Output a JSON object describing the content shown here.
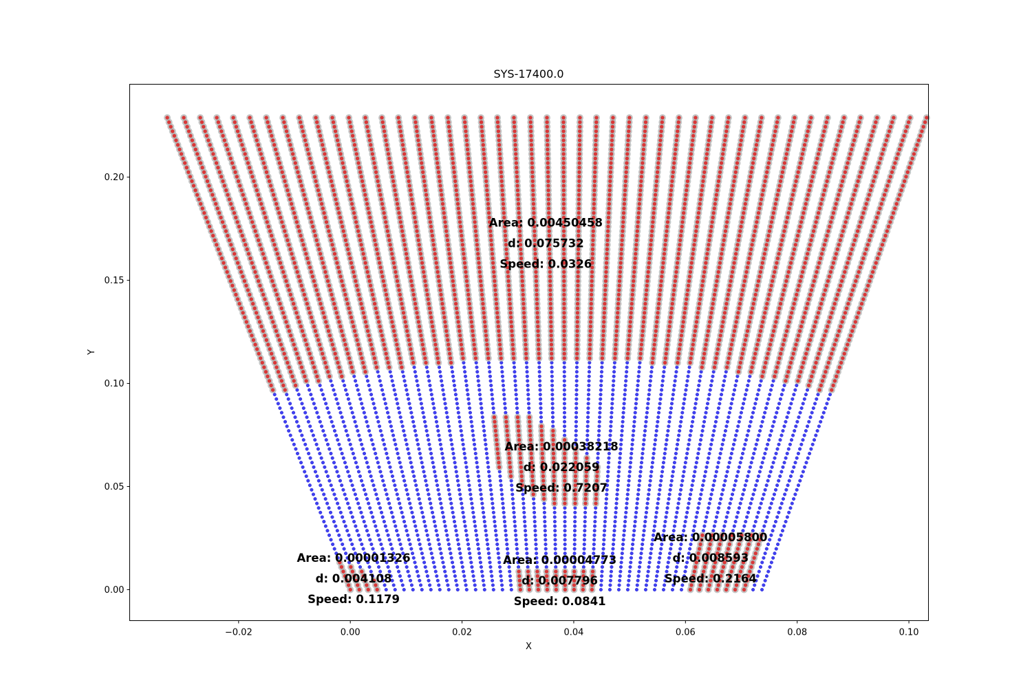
{
  "chart_data": {
    "type": "scatter",
    "title": "SYS-17400.0",
    "xlabel": "X",
    "ylabel": "Y",
    "xlim": [
      -0.0395,
      0.1035
    ],
    "ylim": [
      -0.015,
      0.245
    ],
    "x_ticks": [
      -0.02,
      0.0,
      0.02,
      0.04,
      0.06,
      0.08,
      0.1
    ],
    "x_tick_labels": [
      "−0.02",
      "0.00",
      "0.02",
      "0.04",
      "0.06",
      "0.08",
      "0.10"
    ],
    "y_ticks": [
      0.0,
      0.05,
      0.1,
      0.15,
      0.2
    ],
    "y_tick_labels": [
      "0.00",
      "0.05",
      "0.10",
      "0.15",
      "0.20"
    ],
    "grid": false,
    "legend": "none",
    "colors": {
      "particle_fill": "#4040f0",
      "particle_edge": "#2a2ad8",
      "region_fill": "#d83838",
      "region_halo": "#b0b0b0"
    },
    "geometry": {
      "lines": 47,
      "bottom_x_range": [
        0.0,
        0.0737
      ],
      "top_x_range": [
        -0.0328,
        0.1032
      ],
      "y_bottom": 0.0,
      "y_top": 0.229
    },
    "regions": [
      {
        "name": "upper",
        "y_min_center": 0.112,
        "y_min_edge": 0.095,
        "annotation": [
          "Area: 0.00450458",
          "d: 0.075732",
          "Speed: 0.0326"
        ],
        "annotation_at": [
          0.035,
          0.168
        ]
      },
      {
        "name": "middle",
        "y_min_center": 0.04,
        "y_max_center": 0.085,
        "annotation": [
          "Area: 0.00038218",
          "d: 0.022059",
          "Speed: 0.7207"
        ],
        "annotation_at": [
          0.0378,
          0.0595
        ]
      },
      {
        "name": "bottom-left",
        "y_min": 0.0,
        "y_max": 0.015,
        "annotation": [
          "Area: 0.00001326",
          "d: 0.004108",
          "Speed: 0.1179"
        ],
        "annotation_at": [
          0.0006,
          0.0055
        ]
      },
      {
        "name": "bottom-center",
        "y_min": 0.0,
        "y_max": 0.009,
        "annotation": [
          "Area: 0.00004773",
          "d: 0.007796",
          "Speed: 0.0841"
        ],
        "annotation_at": [
          0.0375,
          0.0045
        ]
      },
      {
        "name": "bottom-right",
        "y_min": 0.0,
        "y_max": 0.027,
        "annotation": [
          "Area: 0.00005800",
          "d: 0.008593",
          "Speed: 0.2164"
        ],
        "annotation_at": [
          0.0645,
          0.0155
        ]
      }
    ]
  }
}
